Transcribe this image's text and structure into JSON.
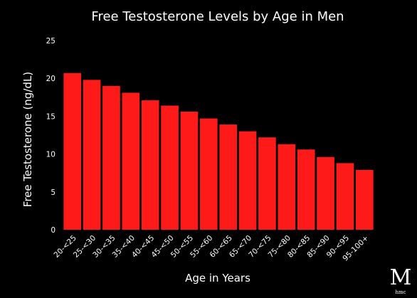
{
  "chart_data": {
    "type": "bar",
    "title": "Free Testosterone Levels by Age in Men",
    "xlabel": "Age in Years",
    "ylabel": "Free Testosterone (ng/dL)",
    "ylim": [
      0,
      25
    ],
    "yticks": [
      0,
      5,
      10,
      15,
      20,
      25
    ],
    "grid": false,
    "categories": [
      "20-<25",
      "25-<30",
      "30-<35",
      "35-<40",
      "40-<45",
      "45-<50",
      "50-<55",
      "55-<60",
      "60-<65",
      "65-<70",
      "70-<75",
      "75-<80",
      "80-<85",
      "85-<90",
      "90-<95",
      "95-100+"
    ],
    "values": [
      20.7,
      19.8,
      19.0,
      18.1,
      17.1,
      16.4,
      15.6,
      14.7,
      13.9,
      13.0,
      12.2,
      11.3,
      10.6,
      9.6,
      8.8,
      7.9
    ],
    "bar_color": "#ff1a1a",
    "background": "#000000",
    "text_color": "#ffffff"
  },
  "watermark": {
    "letter": "M",
    "text": "hmc"
  }
}
